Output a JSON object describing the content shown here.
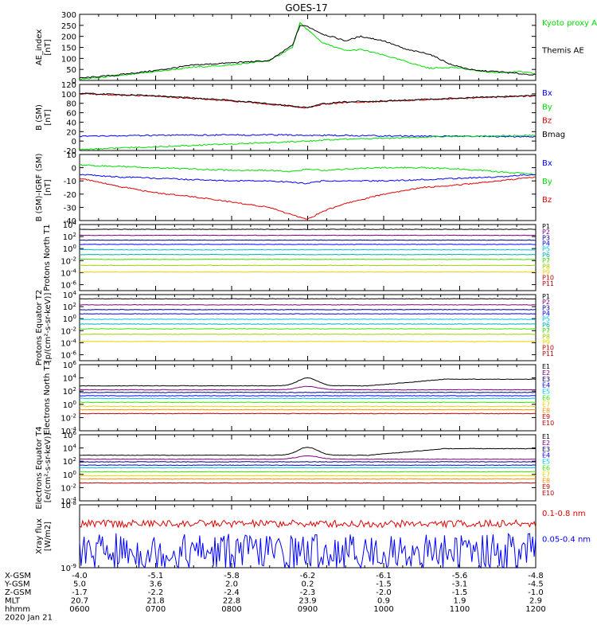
{
  "title": "GOES-17",
  "colors": {
    "black": "#000000",
    "red": "#e00000",
    "green": "#00dd00",
    "blue": "#0000ff",
    "navy": "#000080",
    "purple": "#800080",
    "cyan": "#00c0e0",
    "teal": "#00b0b0",
    "lime": "#40e000",
    "yellowgreen": "#a0d000",
    "yellow": "#f0d000",
    "orange": "#ff9000",
    "darkred": "#c00000",
    "maroon": "#800000"
  },
  "x_positions": {
    "X-GSM": [
      "-4.0",
      "-5.1",
      "-5.8",
      "-6.2",
      "-6.1",
      "-5.6",
      "-4.8"
    ],
    "Y-GSM": [
      "5.0",
      "3.6",
      "2.0",
      "0.2",
      "-1.5",
      "-3.1",
      "-4.5"
    ],
    "Z-GSM": [
      "-1.7",
      "-2.2",
      "-2.4",
      "-2.3",
      "-2.0",
      "-1.5",
      "-1.0"
    ],
    "MLT": [
      "20.7",
      "21.8",
      "22.8",
      "23.9",
      "0.9",
      "1.9",
      "2.9"
    ],
    "hhmm": [
      "0600",
      "0700",
      "0800",
      "0900",
      "1000",
      "1100",
      "1200"
    ]
  },
  "date_label": "2020 Jan 21",
  "chart_data": [
    {
      "id": "ae",
      "type": "line",
      "ylabel": "AE_index [nT]",
      "ylim": [
        0,
        300
      ],
      "yticks": [
        "0",
        "50",
        "100",
        "150",
        "200",
        "250",
        "300"
      ],
      "x": [
        6.0,
        6.5,
        7.0,
        7.5,
        8.0,
        8.5,
        8.8,
        8.9,
        9.0,
        9.2,
        9.5,
        9.7,
        10.0,
        10.3,
        10.6,
        10.9,
        11.2,
        11.5,
        11.8,
        12.0
      ],
      "legend": [
        "Kyoto proxy AE",
        "Themis AE"
      ],
      "series": [
        {
          "name": "Kyoto proxy AE",
          "color": "green",
          "values": [
            5,
            20,
            40,
            60,
            70,
            90,
            150,
            260,
            230,
            170,
            135,
            140,
            115,
            85,
            55,
            60,
            45,
            35,
            40,
            30
          ]
        },
        {
          "name": "Themis AE",
          "color": "black",
          "values": [
            10,
            25,
            45,
            70,
            80,
            90,
            160,
            250,
            245,
            210,
            180,
            200,
            180,
            140,
            120,
            70,
            45,
            40,
            30,
            25
          ]
        }
      ]
    },
    {
      "id": "bsm",
      "type": "line",
      "ylabel": "B (SM) [nT]",
      "ylim": [
        -20,
        120
      ],
      "yticks": [
        "-20",
        "0",
        "20",
        "40",
        "60",
        "80",
        "100",
        "120"
      ],
      "x": [
        6.0,
        7.0,
        8.0,
        8.7,
        9.0,
        9.2,
        9.5,
        10.0,
        11.0,
        12.0
      ],
      "legend": [
        "Bx",
        "By",
        "Bz",
        "Bmag"
      ],
      "series": [
        {
          "name": "Bz",
          "color": "red",
          "values": [
            100,
            95,
            85,
            75,
            70,
            78,
            82,
            84,
            90,
            96
          ]
        },
        {
          "name": "Bmag",
          "color": "black",
          "values": [
            101,
            96,
            86,
            76,
            71,
            79,
            83,
            85,
            91,
            97
          ]
        },
        {
          "name": "Bx",
          "color": "blue",
          "values": [
            10,
            12,
            13,
            13,
            12,
            12,
            12,
            11,
            10,
            9
          ]
        },
        {
          "name": "By",
          "color": "green",
          "values": [
            -18,
            -12,
            -6,
            -2,
            0,
            2,
            4,
            6,
            10,
            12
          ]
        }
      ]
    },
    {
      "id": "dbsm",
      "type": "line",
      "ylabel": "B (SM)-IGRF (SM) [nT]",
      "ylim": [
        -40,
        10
      ],
      "yticks": [
        "-40",
        "-30",
        "-20",
        "-10",
        "0",
        "10"
      ],
      "x": [
        6.0,
        6.5,
        7.0,
        7.5,
        8.0,
        8.5,
        8.8,
        9.0,
        9.2,
        9.5,
        10.0,
        10.5,
        11.0,
        11.5,
        12.0
      ],
      "legend": [
        "Bx",
        "By",
        "Bz"
      ],
      "series": [
        {
          "name": "By",
          "color": "green",
          "values": [
            2,
            1,
            0,
            -1,
            -2,
            -2,
            -3,
            -1,
            -2,
            -1,
            0,
            0,
            -1,
            -3,
            -5
          ]
        },
        {
          "name": "Bx",
          "color": "blue",
          "values": [
            -5,
            -7,
            -8,
            -9,
            -10,
            -10,
            -11,
            -12,
            -10,
            -10,
            -10,
            -9,
            -8,
            -7,
            -5
          ]
        },
        {
          "name": "Bz",
          "color": "red",
          "values": [
            -8,
            -14,
            -19,
            -22,
            -26,
            -30,
            -36,
            -39,
            -33,
            -27,
            -20,
            -15,
            -13,
            -10,
            -7
          ]
        }
      ]
    },
    {
      "id": "p1",
      "type": "line",
      "log": true,
      "ylabel": "Protons North T1",
      "ylim": [
        -7,
        4
      ],
      "yticks": [
        "10^4",
        "10^2",
        "10^0",
        "10^-2",
        "10^-4",
        "10^-6"
      ],
      "legend": [
        "P1",
        "P2",
        "P3",
        "P4",
        "P5",
        "P6",
        "P7",
        "P8",
        "P9",
        "P10",
        "P11"
      ],
      "series": [
        {
          "name": "P1",
          "color": "black",
          "log10_level": 3.2
        },
        {
          "name": "P2",
          "color": "purple",
          "log10_level": 2.2
        },
        {
          "name": "P3",
          "color": "navy",
          "log10_level": 1.4
        },
        {
          "name": "P4",
          "color": "blue",
          "log10_level": 0.7
        },
        {
          "name": "P5",
          "color": "cyan",
          "log10_level": -0.2
        },
        {
          "name": "P6",
          "color": "teal",
          "log10_level": -1.0
        },
        {
          "name": "P7",
          "color": "lime",
          "log10_level": -1.8
        },
        {
          "name": "P8",
          "color": "yellowgreen",
          "log10_level": -2.8
        },
        {
          "name": "P9",
          "color": "yellow",
          "log10_level": -3.9
        }
      ]
    },
    {
      "id": "p2",
      "type": "line",
      "log": true,
      "ylabel": "Protons Equator T2 [p/(cm²-s-sr-keV)]",
      "ylim": [
        -7,
        4
      ],
      "yticks": [
        "10^4",
        "10^2",
        "10^0",
        "10^-2",
        "10^-4",
        "10^-6"
      ],
      "legend": [
        "P1",
        "P2",
        "P3",
        "P4",
        "P5",
        "P6",
        "P7",
        "P8",
        "P9",
        "P10",
        "P11"
      ],
      "series": [
        {
          "name": "P1",
          "color": "black",
          "log10_level": 3.3
        },
        {
          "name": "P2",
          "color": "purple",
          "log10_level": 2.3
        },
        {
          "name": "P3",
          "color": "navy",
          "log10_level": 1.5
        },
        {
          "name": "P4",
          "color": "blue",
          "log10_level": 0.8
        },
        {
          "name": "P5",
          "color": "cyan",
          "log10_level": -0.1
        },
        {
          "name": "P6",
          "color": "teal",
          "log10_level": -0.9
        },
        {
          "name": "P7",
          "color": "lime",
          "log10_level": -1.7
        },
        {
          "name": "P8",
          "color": "yellowgreen",
          "log10_level": -2.6
        },
        {
          "name": "P9",
          "color": "yellow",
          "log10_level": -3.8
        }
      ]
    },
    {
      "id": "e1",
      "type": "line",
      "log": true,
      "ylabel": "Electrons North T3",
      "ylim": [
        -4,
        6
      ],
      "yticks": [
        "10^6",
        "10^4",
        "10^2",
        "10^0",
        "10^-2",
        "10^-4"
      ],
      "legend": [
        "E1",
        "E2",
        "E3",
        "E4",
        "E5",
        "E6",
        "E7",
        "E8",
        "E9",
        "E10"
      ],
      "series": [
        {
          "name": "E1",
          "color": "black",
          "log10_level": 2.8
        },
        {
          "name": "E2",
          "color": "purple",
          "log10_level": 2.2
        },
        {
          "name": "E3",
          "color": "navy",
          "log10_level": 1.8
        },
        {
          "name": "E4",
          "color": "blue",
          "log10_level": 1.3
        },
        {
          "name": "E5",
          "color": "cyan",
          "log10_level": 0.9
        },
        {
          "name": "E6",
          "color": "lime",
          "log10_level": 0.3
        },
        {
          "name": "E7",
          "color": "yellow",
          "log10_level": -0.3
        },
        {
          "name": "E8",
          "color": "orange",
          "log10_level": -0.8
        },
        {
          "name": "E9",
          "color": "darkred",
          "log10_level": -1.4
        }
      ]
    },
    {
      "id": "e2",
      "type": "line",
      "log": true,
      "ylabel": "Electrons Equator T4 [e/(cm²-s-sr-keV)]",
      "ylim": [
        -4,
        6
      ],
      "yticks": [
        "10^6",
        "10^4",
        "10^2",
        "10^0",
        "10^-2",
        "10^-4"
      ],
      "legend": [
        "E1",
        "E2",
        "E3",
        "E4",
        "E5",
        "E6",
        "E7",
        "E8",
        "E9",
        "E10"
      ],
      "series": [
        {
          "name": "E1",
          "color": "black",
          "log10_level": 2.9
        },
        {
          "name": "E2",
          "color": "purple",
          "log10_level": 2.3
        },
        {
          "name": "E3",
          "color": "navy",
          "log10_level": 1.9
        },
        {
          "name": "E4",
          "color": "blue",
          "log10_level": 1.4
        },
        {
          "name": "E5",
          "color": "cyan",
          "log10_level": 1.0
        },
        {
          "name": "E6",
          "color": "lime",
          "log10_level": 0.4
        },
        {
          "name": "E7",
          "color": "yellow",
          "log10_level": -0.2
        },
        {
          "name": "E8",
          "color": "orange",
          "log10_level": -0.7
        },
        {
          "name": "E9",
          "color": "darkred",
          "log10_level": -1.3
        }
      ]
    },
    {
      "id": "xray",
      "type": "line",
      "log": true,
      "ylabel": "Xray flux [W/m2]",
      "ylim": [
        -9,
        -8
      ],
      "yticks": [
        "10^-8",
        "10^-9"
      ],
      "legend": [
        "0.1-0.8 nm",
        "0.05-0.4 nm"
      ],
      "series": [
        {
          "name": "0.1-0.8 nm",
          "color": "red",
          "log10_level": -8.3
        },
        {
          "name": "0.05-0.4 nm",
          "color": "blue",
          "log10_level": -8.75
        }
      ]
    }
  ]
}
